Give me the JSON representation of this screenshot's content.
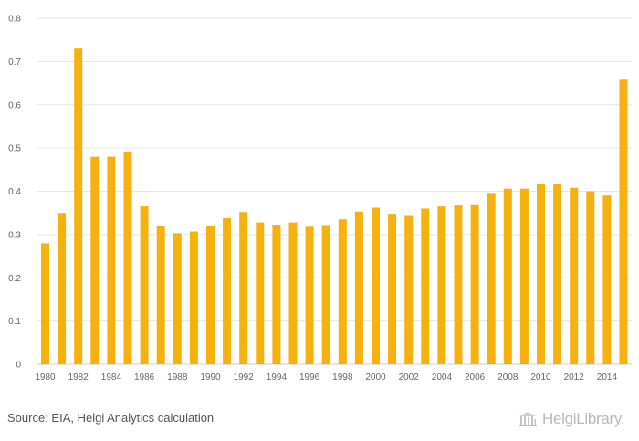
{
  "chart_data": {
    "type": "bar",
    "years": [
      1980,
      1981,
      1982,
      1983,
      1984,
      1985,
      1986,
      1987,
      1988,
      1989,
      1990,
      1991,
      1992,
      1993,
      1994,
      1995,
      1996,
      1997,
      1998,
      1999,
      2000,
      2001,
      2002,
      2003,
      2004,
      2005,
      2006,
      2007,
      2008,
      2009,
      2010,
      2011,
      2012,
      2013,
      2014,
      2015
    ],
    "values": [
      0.28,
      0.35,
      0.73,
      0.48,
      0.48,
      0.49,
      0.365,
      0.32,
      0.303,
      0.307,
      0.32,
      0.338,
      0.352,
      0.328,
      0.323,
      0.328,
      0.318,
      0.322,
      0.335,
      0.353,
      0.362,
      0.348,
      0.343,
      0.36,
      0.365,
      0.367,
      0.37,
      0.396,
      0.406,
      0.406,
      0.418,
      0.418,
      0.408,
      0.4,
      0.39,
      0.658
    ],
    "x_tick_labels": [
      "1980",
      "1982",
      "1984",
      "1986",
      "1988",
      "1990",
      "1992",
      "1994",
      "1996",
      "1998",
      "2000",
      "2002",
      "2004",
      "2006",
      "2008",
      "2010",
      "2012",
      "2014"
    ],
    "y_tick_labels": [
      "0",
      "0.1",
      "0.2",
      "0.3",
      "0.4",
      "0.5",
      "0.6",
      "0.7",
      "0.8"
    ],
    "ylim": [
      0,
      0.8
    ],
    "grid": true,
    "bar_color": "#f6b10f",
    "grid_color": "#e6e6e6",
    "title": "",
    "xlabel": "",
    "ylabel": ""
  },
  "footer": {
    "source": "Source: EIA, Helgi Analytics calculation",
    "logo_text": "HelgiLibrary."
  }
}
